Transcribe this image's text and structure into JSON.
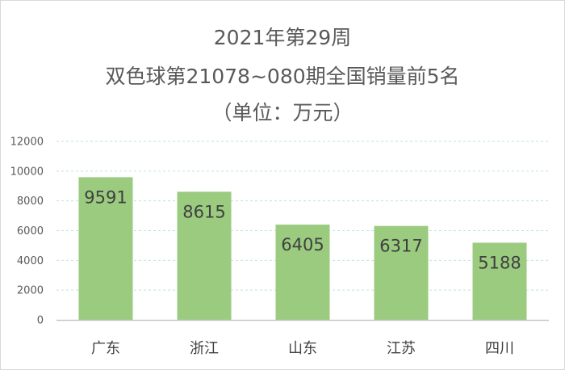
{
  "chart_data": {
    "type": "bar",
    "title_lines": [
      "2021年第29周",
      "双色球第21078~080期全国销量前5名",
      "（单位：万元）"
    ],
    "categories": [
      "广东",
      "浙江",
      "山东",
      "江苏",
      "四川"
    ],
    "values": [
      9591,
      8615,
      6405,
      6317,
      5188
    ],
    "data_labels": [
      "9591",
      "8615",
      "6405",
      "6317",
      "5188"
    ],
    "xlabel": "",
    "ylabel": "",
    "ylim": [
      0,
      12000
    ],
    "yticks": [
      0,
      2000,
      4000,
      6000,
      8000,
      10000,
      12000
    ],
    "ytick_labels": [
      "0",
      "2000",
      "4000",
      "6000",
      "8000",
      "10000",
      "12000"
    ],
    "grid": true,
    "legend": "none",
    "colors": {
      "bar": "#9bcb7f",
      "grid": "#bfe3e3",
      "axis": "#c8c8c8"
    }
  }
}
